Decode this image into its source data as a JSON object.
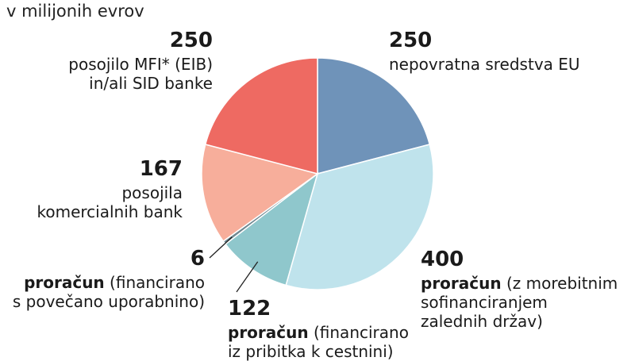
{
  "unit_label": "v milijonih evrov",
  "chart_data": {
    "type": "pie",
    "slices": [
      {
        "value": 250,
        "value_label": "250",
        "label_bold": "",
        "label": "nepovratna sredstva EU",
        "color": "#6f93b9"
      },
      {
        "value": 400,
        "value_label": "400",
        "label_bold": "proračun",
        "label": " (z morebitnim\nsofinanciranjem\nzalednih držav)",
        "color": "#bfe3ec"
      },
      {
        "value": 122,
        "value_label": "122",
        "label_bold": "proračun",
        "label": " (financirano\niz pribitka k cestnini)",
        "color": "#8fc7cc"
      },
      {
        "value": 6,
        "value_label": "6",
        "label_bold": "proračun",
        "label": " (financirano\ns povečano uporabnino)",
        "color": "#6f8891"
      },
      {
        "value": 167,
        "value_label": "167",
        "label_bold": "",
        "label": "posojila\nkomercialnih bank",
        "color": "#f7ae9b"
      },
      {
        "value": 250,
        "value_label": "250",
        "label_bold": "",
        "label": "posojilo MFI* (EIB)\nin/ali SID banke",
        "color": "#ee6a62"
      }
    ]
  }
}
